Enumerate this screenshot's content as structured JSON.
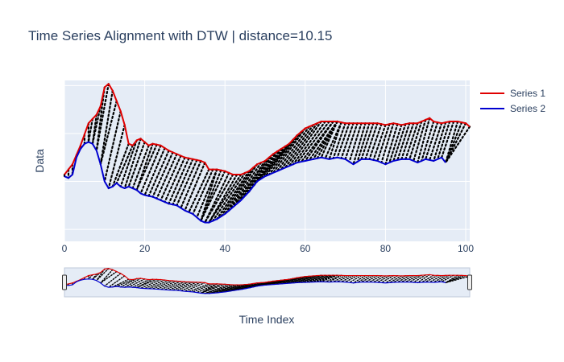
{
  "chart_data": {
    "type": "line",
    "title": "Time Series Alignment with DTW | distance=10.15",
    "xlabel": "Time Index",
    "ylabel": "Data",
    "xlim": [
      0,
      101
    ],
    "ylim": [
      -2.55,
      2.15
    ],
    "x_ticks": [
      0,
      20,
      40,
      60,
      80,
      100
    ],
    "y_gridlines": [
      -2.2,
      -0.8,
      0.6,
      2.0
    ],
    "grid": true,
    "legend_position": "top-right",
    "rangeslider": true,
    "series": [
      {
        "name": "Series 1",
        "color": "#e00000",
        "keypoints": [
          [
            0,
            -0.6
          ],
          [
            2,
            -0.3
          ],
          [
            4,
            0.25
          ],
          [
            6,
            0.9
          ],
          [
            8,
            1.15
          ],
          [
            9,
            1.4
          ],
          [
            10,
            1.95
          ],
          [
            11,
            2.05
          ],
          [
            12,
            1.85
          ],
          [
            13,
            1.55
          ],
          [
            14,
            1.25
          ],
          [
            15,
            0.85
          ],
          [
            16,
            0.3
          ],
          [
            17,
            0.25
          ],
          [
            18,
            0.4
          ],
          [
            19,
            0.45
          ],
          [
            20,
            0.35
          ],
          [
            21,
            0.25
          ],
          [
            22,
            0.3
          ],
          [
            24,
            0.25
          ],
          [
            26,
            0.1
          ],
          [
            28,
            0.0
          ],
          [
            30,
            -0.1
          ],
          [
            32,
            -0.15
          ],
          [
            34,
            -0.2
          ],
          [
            35,
            -0.25
          ],
          [
            36,
            -0.45
          ],
          [
            38,
            -0.45
          ],
          [
            40,
            -0.5
          ],
          [
            42,
            -0.6
          ],
          [
            44,
            -0.6
          ],
          [
            46,
            -0.5
          ],
          [
            48,
            -0.3
          ],
          [
            50,
            -0.2
          ],
          [
            52,
            0.0
          ],
          [
            54,
            0.15
          ],
          [
            56,
            0.3
          ],
          [
            58,
            0.55
          ],
          [
            60,
            0.75
          ],
          [
            62,
            0.85
          ],
          [
            64,
            0.95
          ],
          [
            66,
            0.95
          ],
          [
            68,
            0.95
          ],
          [
            70,
            0.9
          ],
          [
            72,
            0.9
          ],
          [
            74,
            0.9
          ],
          [
            76,
            0.9
          ],
          [
            78,
            0.9
          ],
          [
            80,
            0.85
          ],
          [
            82,
            0.9
          ],
          [
            84,
            0.85
          ],
          [
            86,
            0.9
          ],
          [
            88,
            0.9
          ],
          [
            90,
            1.0
          ],
          [
            91,
            1.05
          ],
          [
            92,
            0.95
          ],
          [
            94,
            0.9
          ],
          [
            96,
            0.95
          ],
          [
            98,
            0.95
          ],
          [
            100,
            0.9
          ],
          [
            101,
            0.8
          ]
        ]
      },
      {
        "name": "Series 2",
        "color": "#0000d0",
        "keypoints": [
          [
            0,
            -0.65
          ],
          [
            1,
            -0.7
          ],
          [
            2,
            -0.6
          ],
          [
            3,
            -0.1
          ],
          [
            4,
            0.15
          ],
          [
            5,
            0.3
          ],
          [
            6,
            0.35
          ],
          [
            7,
            0.3
          ],
          [
            8,
            0.1
          ],
          [
            9,
            -0.3
          ],
          [
            10,
            -0.8
          ],
          [
            11,
            -1.0
          ],
          [
            12,
            -0.95
          ],
          [
            13,
            -0.85
          ],
          [
            14,
            -0.95
          ],
          [
            15,
            -1.0
          ],
          [
            16,
            -0.95
          ],
          [
            17,
            -1.0
          ],
          [
            18,
            -1.05
          ],
          [
            19,
            -1.15
          ],
          [
            20,
            -1.2
          ],
          [
            22,
            -1.25
          ],
          [
            24,
            -1.35
          ],
          [
            26,
            -1.45
          ],
          [
            28,
            -1.5
          ],
          [
            30,
            -1.65
          ],
          [
            32,
            -1.75
          ],
          [
            34,
            -1.95
          ],
          [
            35,
            -2.0
          ],
          [
            36,
            -2.0
          ],
          [
            38,
            -1.9
          ],
          [
            40,
            -1.75
          ],
          [
            42,
            -1.55
          ],
          [
            44,
            -1.35
          ],
          [
            46,
            -1.1
          ],
          [
            48,
            -0.8
          ],
          [
            50,
            -0.65
          ],
          [
            52,
            -0.55
          ],
          [
            54,
            -0.45
          ],
          [
            56,
            -0.35
          ],
          [
            58,
            -0.25
          ],
          [
            60,
            -0.2
          ],
          [
            62,
            -0.15
          ],
          [
            64,
            -0.1
          ],
          [
            66,
            -0.15
          ],
          [
            68,
            -0.1
          ],
          [
            70,
            -0.15
          ],
          [
            72,
            -0.3
          ],
          [
            74,
            -0.15
          ],
          [
            76,
            -0.15
          ],
          [
            78,
            -0.2
          ],
          [
            80,
            -0.3
          ],
          [
            82,
            -0.2
          ],
          [
            84,
            -0.15
          ],
          [
            86,
            -0.15
          ],
          [
            88,
            -0.25
          ],
          [
            90,
            -0.15
          ],
          [
            92,
            -0.2
          ],
          [
            94,
            -0.1
          ],
          [
            95,
            -0.25
          ]
        ]
      }
    ],
    "alignment": {
      "name": "DTW warping path",
      "color": "#000000",
      "style": "dotted",
      "pairs": [
        [
          0,
          0
        ],
        [
          1,
          1
        ],
        [
          2,
          2
        ],
        [
          3,
          3
        ],
        [
          4,
          4
        ],
        [
          5,
          5
        ],
        [
          6,
          6
        ],
        [
          7,
          6
        ],
        [
          8,
          7
        ],
        [
          9,
          7
        ],
        [
          10,
          8
        ],
        [
          11,
          8
        ],
        [
          12,
          9
        ],
        [
          13,
          9
        ],
        [
          14,
          10
        ],
        [
          15,
          11
        ],
        [
          16,
          12
        ],
        [
          17,
          13
        ],
        [
          18,
          14
        ],
        [
          19,
          15
        ],
        [
          20,
          16
        ],
        [
          21,
          17
        ],
        [
          22,
          18
        ],
        [
          23,
          18
        ],
        [
          24,
          19
        ],
        [
          25,
          20
        ],
        [
          26,
          21
        ],
        [
          27,
          22
        ],
        [
          28,
          23
        ],
        [
          29,
          24
        ],
        [
          30,
          25
        ],
        [
          31,
          26
        ],
        [
          32,
          27
        ],
        [
          33,
          28
        ],
        [
          34,
          29
        ],
        [
          35,
          30
        ],
        [
          36,
          31
        ],
        [
          37,
          32
        ],
        [
          38,
          33
        ],
        [
          38,
          34
        ],
        [
          39,
          34
        ],
        [
          40,
          34
        ],
        [
          41,
          35
        ],
        [
          42,
          35
        ],
        [
          43,
          36
        ],
        [
          44,
          36
        ],
        [
          45,
          37
        ],
        [
          46,
          38
        ],
        [
          47,
          39
        ],
        [
          48,
          40
        ],
        [
          49,
          41
        ],
        [
          50,
          42
        ],
        [
          51,
          43
        ],
        [
          52,
          44
        ],
        [
          53,
          45
        ],
        [
          54,
          46
        ],
        [
          55,
          47
        ],
        [
          56,
          48
        ],
        [
          57,
          49
        ],
        [
          58,
          50
        ],
        [
          59,
          51
        ],
        [
          60,
          52
        ],
        [
          61,
          53
        ],
        [
          62,
          54
        ],
        [
          63,
          55
        ],
        [
          64,
          56
        ],
        [
          65,
          57
        ],
        [
          66,
          58
        ],
        [
          67,
          59
        ],
        [
          67,
          60
        ],
        [
          68,
          61
        ],
        [
          68,
          62
        ],
        [
          68,
          63
        ],
        [
          68,
          64
        ],
        [
          69,
          65
        ],
        [
          69,
          66
        ],
        [
          70,
          67
        ],
        [
          71,
          68
        ],
        [
          72,
          69
        ],
        [
          73,
          70
        ],
        [
          74,
          71
        ],
        [
          75,
          72
        ],
        [
          76,
          73
        ],
        [
          77,
          74
        ],
        [
          78,
          75
        ],
        [
          79,
          76
        ],
        [
          80,
          77
        ],
        [
          81,
          78
        ],
        [
          82,
          79
        ],
        [
          83,
          80
        ],
        [
          84,
          81
        ],
        [
          85,
          82
        ],
        [
          86,
          83
        ],
        [
          87,
          84
        ],
        [
          88,
          85
        ],
        [
          89,
          86
        ],
        [
          90,
          87
        ],
        [
          91,
          88
        ],
        [
          92,
          89
        ],
        [
          93,
          90
        ],
        [
          94,
          91
        ],
        [
          95,
          92
        ],
        [
          96,
          93
        ],
        [
          97,
          94
        ],
        [
          98,
          95
        ],
        [
          99,
          95
        ],
        [
          100,
          95
        ],
        [
          101,
          95
        ]
      ]
    }
  }
}
